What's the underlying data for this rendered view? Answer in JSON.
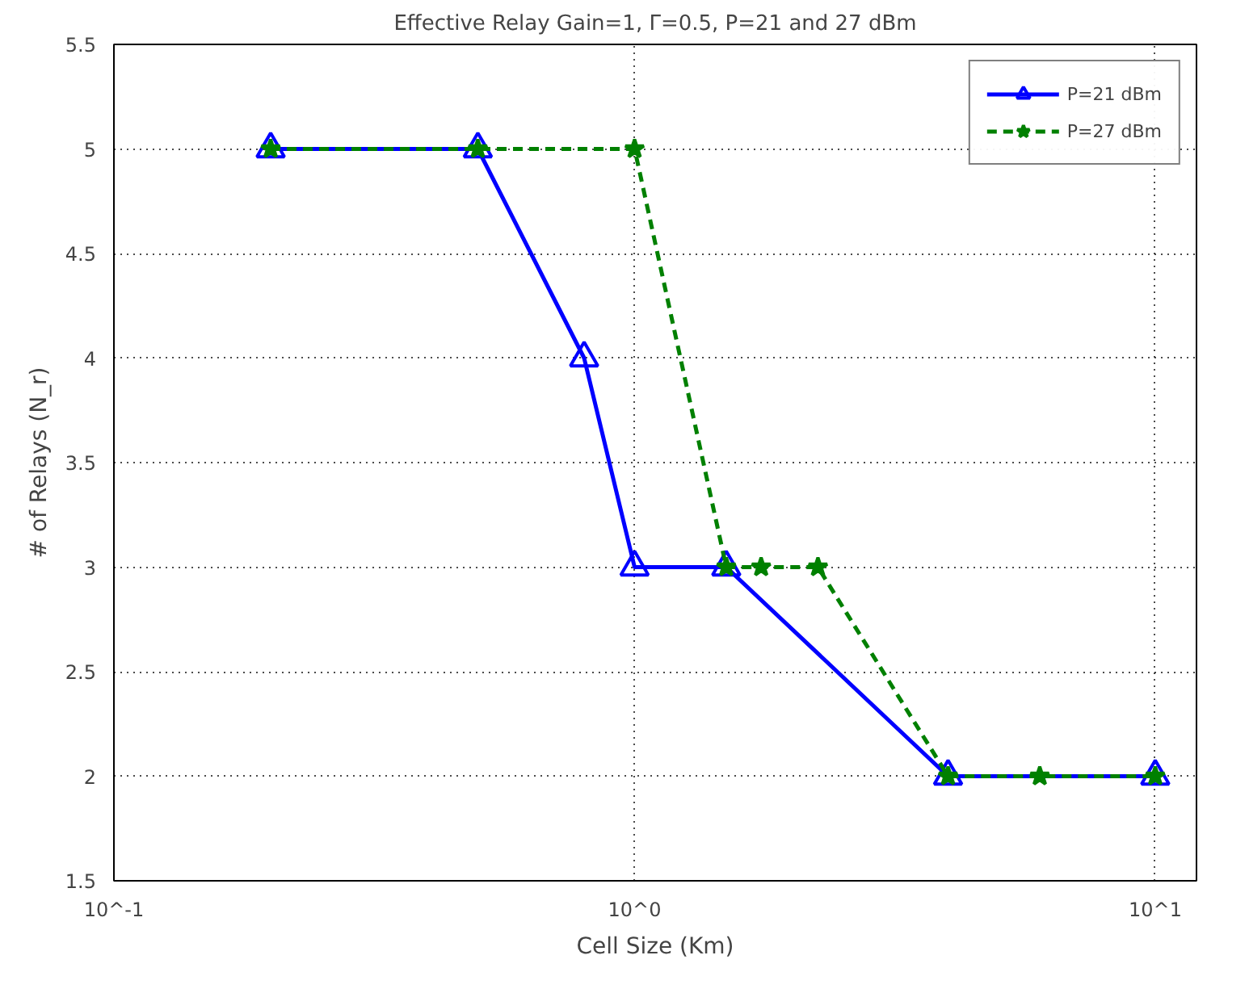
{
  "chart_data": {
    "type": "line",
    "title": "Effective Relay Gain=1, Γ=0.5, P=21 and 27 dBm",
    "xlabel": "Cell Size (Km)",
    "ylabel": "# of Relays (N_r)",
    "log": "x",
    "xlim": [
      0.1,
      12
    ],
    "ylim": [
      1.5,
      5.5
    ],
    "xticks": [
      {
        "value": 0.1,
        "label": "10^-1"
      },
      {
        "value": 1,
        "label": "10^0"
      },
      {
        "value": 10,
        "label": "10^1"
      }
    ],
    "yticks": [
      1.5,
      2,
      2.5,
      3,
      3.5,
      4,
      4.5,
      5,
      5.5
    ],
    "grid": true,
    "legend": "top right",
    "series": [
      {
        "name": "P=21 dBm",
        "color": "#0000ff",
        "marker": "triangle",
        "line_style": "solid",
        "x": [
          0.2,
          0.5,
          0.8,
          1,
          1.5,
          4,
          10
        ],
        "values": [
          5,
          5,
          4,
          3,
          3,
          2,
          2
        ]
      },
      {
        "name": "P=27 dBm",
        "color": "#008000",
        "marker": "star",
        "line_style": "dashed",
        "x": [
          0.2,
          0.5,
          1,
          1.5,
          1.75,
          2.25,
          4,
          6,
          10
        ],
        "values": [
          5,
          5,
          5,
          3,
          3,
          3,
          2,
          2,
          2
        ]
      }
    ]
  }
}
